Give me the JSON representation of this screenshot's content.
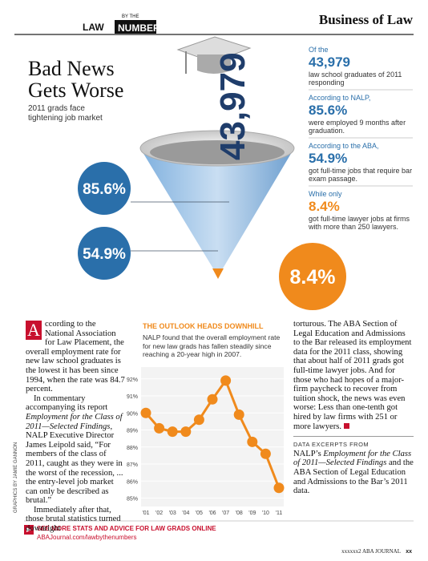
{
  "header": {
    "logo_top": "LAW",
    "logo_small": "BY THE",
    "logo_bottom": "NUMBERS",
    "section": "Business of Law"
  },
  "headline": {
    "title": "Bad News Gets Worse",
    "subtitle": "2011 grads face tightening job market"
  },
  "funnel": {
    "total": "43,979",
    "labels": [
      "85.6%",
      "54.9%",
      "8.4%"
    ]
  },
  "facts": [
    {
      "lead": "Of the",
      "figure": "43,979",
      "text": "law school graduates of 2011 responding"
    },
    {
      "lead": "According to NALP,",
      "figure": "85.6%",
      "text": "were employed 9 months after graduation."
    },
    {
      "lead": "According to the ABA,",
      "figure": "54.9%",
      "text": "got full-time jobs that require bar exam passage."
    },
    {
      "lead": "While only",
      "figure": "8.4%",
      "text": "got full-time lawyer jobs at firms with more than 250 lawyers."
    }
  ],
  "article": {
    "drop_cap": "A",
    "paragraphs": [
      [
        "ccording to the National Association for Law Placement, the overall employment rate for new law school graduates is the lowest it has been since 1994, when the rate was 84.7 percent."
      ],
      [
        "In commentary accompanying its report ",
        "Employment for the Class of 2011—Selected Findings",
        ", NALP Executive Director James Leipold said, “For members of the class of 2011, caught as they were in the worst of the recession, ... the entry-level job market can only be described as brutal.”"
      ],
      [
        "Immediately after that, those brutal statistics turned downright"
      ],
      [
        "torturous. The ABA Section of Legal Education and Admissions to the Bar released its employment data for the 2011 class, showing that about half of 2011 grads got full-time lawyer jobs. And for those who had hopes of a major-firm paycheck to recover from tuition shock, the news was even worse: Less than one-tenth got hired by law firms with 251 or more lawyers."
      ]
    ],
    "source_label": "DATA EXCERPTS FROM",
    "source": [
      "NALP’s ",
      "Employment for the Class of 2011—Selected Findings",
      " and the ABA Section of Legal Education and Admissions to the Bar’s 2011 data."
    ]
  },
  "chart": {
    "type": "line",
    "title": "THE OUTLOOK HEADS DOWNHILL",
    "subtitle": "NALP found that the overall employment rate for new law grads has fallen steadily since reaching a 20-year high in 2007.",
    "categories": [
      "'01",
      "'02",
      "'03",
      "'04",
      "'05",
      "'06",
      "'07",
      "'08",
      "'09",
      "'10",
      "'11"
    ],
    "values": [
      90.0,
      89.1,
      88.9,
      88.9,
      89.6,
      90.8,
      91.9,
      89.9,
      88.3,
      87.6,
      85.6
    ],
    "color": "#f08a1c",
    "ylim": [
      84.6,
      92.6
    ],
    "yticks": [
      {
        "value": 85,
        "label": "85%"
      },
      {
        "value": 86,
        "label": "86%"
      },
      {
        "value": 87,
        "label": "87%"
      },
      {
        "value": 88,
        "label": "88%"
      },
      {
        "value": 89,
        "label": "89%"
      },
      {
        "value": 90,
        "label": "90%"
      },
      {
        "value": 91,
        "label": "91%"
      },
      {
        "value": 92,
        "label": "92%"
      }
    ],
    "grid": true
  },
  "credit": "GRAPHICS BY JAMIE GANNON",
  "footer": {
    "cta": "SEE MORE STATS AND ADVICE FOR LAW GRADS ONLINE",
    "url": "ABAJournal.com/lawbythenumbers",
    "page": "xxxxxx2 ABA JOURNAL",
    "folio": "xx"
  }
}
